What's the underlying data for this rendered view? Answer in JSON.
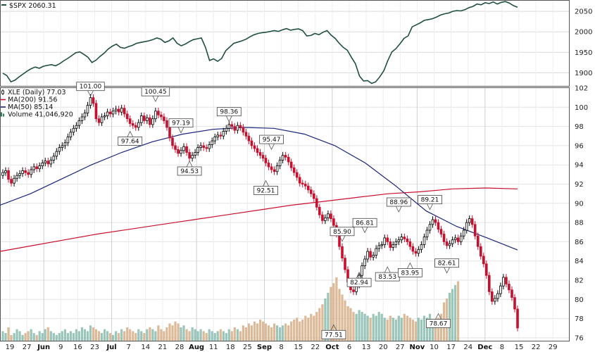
{
  "chart_data": [
    {
      "type": "line",
      "title": "$SPX 2060.31",
      "yticks": [
        1900,
        1950,
        2000,
        2050
      ],
      "ylim": [
        1868,
        2076
      ],
      "series": [
        {
          "name": "$SPX",
          "color": "#1f4f3f",
          "values": [
            1899,
            1893,
            1878,
            1882,
            1890,
            1897,
            1904,
            1910,
            1914,
            1911,
            1916,
            1918,
            1920,
            1917,
            1922,
            1929,
            1935,
            1942,
            1949,
            1951,
            1945,
            1938,
            1925,
            1931,
            1940,
            1948,
            1958,
            1965,
            1970,
            1962,
            1960,
            1964,
            1967,
            1972,
            1974,
            1976,
            1978,
            1981,
            1985,
            1982,
            1974,
            1978,
            1985,
            1972,
            1966,
            1970,
            1976,
            1981,
            1983,
            1985,
            1962,
            1930,
            1934,
            1928,
            1935,
            1954,
            1963,
            1972,
            1975,
            1978,
            1982,
            1988,
            1993,
            1996,
            1998,
            1999,
            2001,
            2003,
            2001,
            2005,
            2008,
            2004,
            2006,
            2007,
            2003,
            1990,
            1991,
            1996,
            1993,
            1999,
            2003,
            1992,
            1984,
            1972,
            1962,
            1955,
            1938,
            1922,
            1892,
            1880,
            1881,
            1874,
            1878,
            1890,
            1905,
            1930,
            1951,
            1959,
            1971,
            1984,
            1990,
            2012,
            2017,
            2022,
            2028,
            2030,
            2032,
            2036,
            2041,
            2044,
            2046,
            2050,
            2052,
            2051,
            2054,
            2059,
            2062,
            2068,
            2066,
            2071,
            2069,
            2073,
            2068,
            2072,
            2074,
            2070,
            2064,
            2060
          ]
        }
      ]
    },
    {
      "type": "candlestick",
      "title": "XLE (Daily) 77.03",
      "yticks": [
        76,
        78,
        80,
        82,
        84,
        86,
        88,
        90,
        92,
        94,
        96,
        98,
        100,
        102
      ],
      "ylim": [
        75.7,
        102
      ],
      "xticks": [
        "19",
        "27",
        "Jun",
        "9",
        "16",
        "23",
        "Jul",
        "7",
        "14",
        "21",
        "28",
        "Aug",
        "11",
        "18",
        "25",
        "Sep",
        "8",
        "15",
        "22",
        "Oct",
        "6",
        "13",
        "20",
        "27",
        "Nov",
        "10",
        "17",
        "24",
        "Dec",
        "8",
        "15",
        "22",
        "29"
      ],
      "close": [
        93.2,
        93.4,
        92.5,
        92.1,
        92.6,
        92.9,
        93.1,
        93.4,
        93.2,
        93.0,
        93.5,
        93.8,
        93.6,
        93.9,
        94.2,
        94.4,
        94.1,
        94.5,
        94.9,
        95.4,
        95.8,
        96.0,
        96.3,
        96.9,
        97.4,
        97.8,
        98.1,
        98.6,
        99.0,
        99.4,
        100.2,
        101.0,
        100.4,
        98.8,
        98.4,
        99.0,
        99.1,
        99.5,
        99.3,
        99.6,
        99.8,
        99.5,
        99.9,
        99.3,
        98.8,
        98.3,
        98.1,
        97.9,
        98.4,
        99.1,
        98.6,
        98.9,
        98.2,
        98.8,
        99.6,
        99.2,
        99.0,
        98.6,
        97.9,
        96.8,
        96.0,
        95.6,
        95.2,
        95.5,
        95.9,
        95.3,
        94.7,
        95.0,
        95.3,
        95.8,
        96.0,
        95.8,
        95.7,
        96.1,
        96.5,
        96.9,
        97.1,
        97.0,
        97.5,
        97.8,
        98.2,
        98.0,
        97.6,
        98.1,
        97.9,
        97.4,
        97.0,
        96.5,
        96.0,
        95.7,
        95.3,
        95.0,
        94.7,
        94.2,
        93.8,
        93.5,
        93.3,
        93.9,
        94.5,
        95.0,
        94.8,
        94.3,
        93.7,
        93.2,
        92.7,
        92.1,
        92.0,
        91.8,
        91.4,
        91.0,
        90.5,
        89.6,
        88.8,
        88.2,
        88.5,
        88.9,
        88.4,
        87.7,
        86.8,
        85.5,
        84.3,
        83.1,
        81.8,
        81.0,
        80.8,
        81.5,
        82.5,
        83.5,
        84.2,
        85.0,
        84.4,
        84.6,
        85.3,
        85.6,
        85.7,
        86.4,
        86.0,
        85.4,
        85.7,
        86.0,
        86.2,
        86.5,
        86.3,
        86.0,
        85.5,
        85.0,
        84.8,
        85.2,
        85.7,
        86.5,
        87.2,
        87.8,
        88.3,
        88.0,
        87.3,
        86.8,
        86.0,
        85.6,
        85.8,
        86.2,
        86.4,
        86.0,
        86.6,
        87.2,
        88.0,
        88.4,
        87.8,
        86.6,
        85.5,
        84.5,
        83.7,
        82.5,
        80.8,
        79.8,
        80.1,
        80.6,
        81.4,
        82.3,
        81.6,
        81.0,
        80.2,
        79.0,
        77.03
      ],
      "annotations": [
        {
          "label": "101.00",
          "index": 31,
          "price": 101.0,
          "place": "above"
        },
        {
          "label": "97.64",
          "index": 45,
          "price": 97.64,
          "place": "below"
        },
        {
          "label": "100.45",
          "index": 54,
          "price": 100.45,
          "place": "above"
        },
        {
          "label": "97.19",
          "index": 63,
          "price": 97.19,
          "place": "above"
        },
        {
          "label": "94.53",
          "index": 66,
          "price": 94.53,
          "place": "below"
        },
        {
          "label": "98.36",
          "index": 80,
          "price": 98.36,
          "place": "above"
        },
        {
          "label": "95.47",
          "index": 95,
          "price": 95.47,
          "place": "above"
        },
        {
          "label": "92.51",
          "index": 93,
          "price": 92.51,
          "place": "below"
        },
        {
          "label": "85.90",
          "index": 120,
          "price": 85.9,
          "place": "above"
        },
        {
          "label": "77.51",
          "index": 117,
          "price": 77.51,
          "place": "below"
        },
        {
          "label": "86.81",
          "index": 128,
          "price": 86.81,
          "place": "above"
        },
        {
          "label": "82.94",
          "index": 126,
          "price": 82.94,
          "place": "below"
        },
        {
          "label": "83.53",
          "index": 136,
          "price": 83.53,
          "place": "below"
        },
        {
          "label": "88.96",
          "index": 140,
          "price": 88.96,
          "place": "above"
        },
        {
          "label": "83.95",
          "index": 144,
          "price": 83.95,
          "place": "below"
        },
        {
          "label": "89.21",
          "index": 151,
          "price": 89.21,
          "place": "above"
        },
        {
          "label": "82.61",
          "index": 157,
          "price": 82.61,
          "place": "above"
        },
        {
          "label": "78.67",
          "index": 154,
          "price": 78.67,
          "place": "below"
        }
      ],
      "legend": [
        {
          "label": "XLE (Daily) 77.03",
          "color": "#000000",
          "marker": "candle"
        },
        {
          "label": "MA(200) 91.56",
          "color": "#c8102e",
          "marker": "line"
        },
        {
          "label": "MA(50) 85.14",
          "color": "#1a237e",
          "marker": "line"
        },
        {
          "label": "Volume 41,046,920",
          "color": "#2e7d5b",
          "marker": "bars"
        }
      ],
      "ma200": {
        "name": "MA(200) 91.56",
        "color": "#c8102e",
        "values": [
          85.0,
          85.6,
          86.2,
          86.8,
          87.3,
          87.8,
          88.3,
          88.8,
          89.3,
          89.8,
          90.2,
          90.6,
          91.0,
          91.2,
          91.5,
          91.6,
          91.5
        ]
      },
      "ma50": {
        "name": "MA(50) 85.14",
        "color": "#1a237e",
        "values": [
          89.8,
          91.0,
          92.5,
          94.0,
          95.3,
          96.4,
          97.2,
          97.7,
          97.9,
          97.8,
          97.2,
          96.0,
          94.2,
          91.8,
          89.2,
          87.6,
          86.4,
          85.14
        ]
      },
      "volume": {
        "name": "Volume 41,046,920",
        "up_color": "#8fbfb3",
        "down_color": "#d9b38c",
        "values": [
          5,
          4,
          7,
          3,
          4,
          6,
          5,
          3,
          4,
          5,
          6,
          4,
          3,
          5,
          4,
          6,
          7,
          5,
          4,
          3,
          4,
          5,
          6,
          4,
          5,
          4,
          6,
          5,
          7,
          6,
          5,
          8,
          7,
          6,
          5,
          4,
          6,
          5,
          4,
          3,
          5,
          4,
          6,
          5,
          7,
          6,
          5,
          4,
          6,
          5,
          4,
          6,
          7,
          6,
          5,
          8,
          6,
          5,
          7,
          9,
          8,
          10,
          9,
          7,
          8,
          6,
          5,
          7,
          6,
          5,
          6,
          5,
          4,
          6,
          5,
          4,
          5,
          6,
          5,
          4,
          6,
          5,
          7,
          6,
          5,
          8,
          7,
          9,
          8,
          10,
          9,
          11,
          10,
          9,
          8,
          7,
          9,
          8,
          7,
          8,
          9,
          8,
          10,
          11,
          12,
          10,
          11,
          13,
          12,
          14,
          13,
          15,
          17,
          19,
          22,
          25,
          28,
          30,
          33,
          27,
          24,
          21,
          18,
          17,
          15,
          14,
          16,
          15,
          14,
          13,
          12,
          14,
          13,
          15,
          14,
          12,
          11,
          13,
          12,
          11,
          13,
          12,
          14,
          13,
          12,
          11,
          10,
          12,
          11,
          13,
          12,
          14,
          11,
          10,
          12,
          14,
          20,
          22,
          25,
          27,
          29,
          31
        ]
      }
    }
  ]
}
